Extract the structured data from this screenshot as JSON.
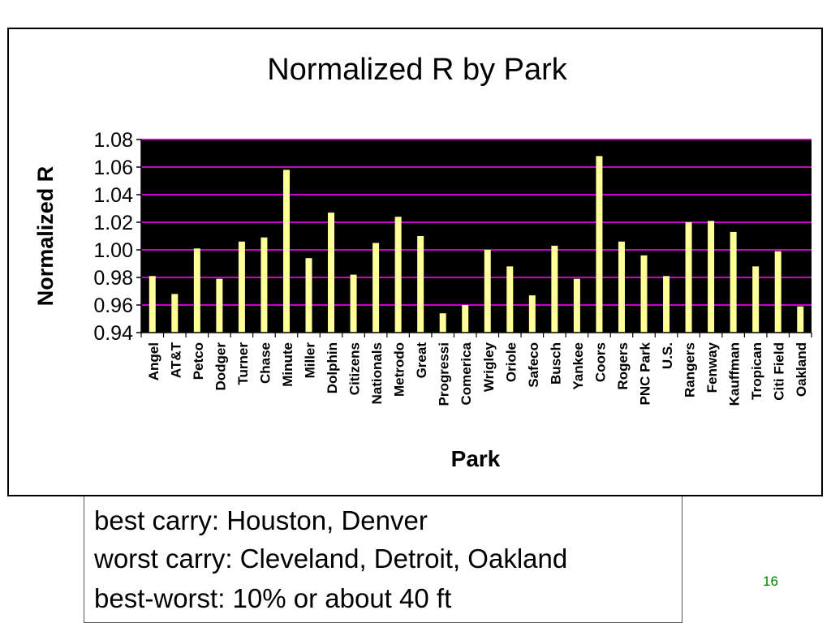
{
  "chart_data": {
    "type": "bar",
    "title": "Normalized R by Park",
    "xlabel": "Park",
    "ylabel": "Normalized R",
    "ylim": [
      0.94,
      1.08
    ],
    "yticks": [
      "1.08",
      "1.06",
      "1.04",
      "1.02",
      "1.00",
      "0.98",
      "0.96",
      "0.94"
    ],
    "grid": true,
    "colors": {
      "plot_background": "#000000",
      "bar": "#ffff99",
      "gridline": "#cc00cc"
    },
    "categories": [
      "Angel",
      "AT&T",
      "Petco",
      "Dodger",
      "Turner",
      "Chase",
      "Minute",
      "Miller",
      "Dolphin",
      "Citizens",
      "Nationals",
      "Metrodo",
      "Great",
      "Progressi",
      "Comerica",
      "Wrigley",
      "Oriole",
      "Safeco",
      "Busch",
      "Yankee",
      "Coors",
      "Rogers",
      "PNC Park",
      "U.S.",
      "Rangers",
      "Fenway",
      "Kauffman",
      "Tropican",
      "Citi Field",
      "Oakland"
    ],
    "values": [
      0.981,
      0.968,
      1.001,
      0.979,
      1.006,
      1.009,
      1.058,
      0.994,
      1.027,
      0.982,
      1.005,
      1.024,
      1.01,
      0.954,
      0.96,
      1.0,
      0.988,
      0.967,
      1.003,
      0.979,
      1.068,
      1.006,
      0.996,
      0.981,
      1.02,
      1.021,
      1.013,
      0.988,
      0.999,
      0.959
    ]
  },
  "notes": {
    "line1": "best carry:  Houston, Denver",
    "line2": "worst carry:  Cleveland, Detroit, Oakland",
    "line3": "best-worst:  10% or about 40 ft"
  },
  "slide_number": "16"
}
